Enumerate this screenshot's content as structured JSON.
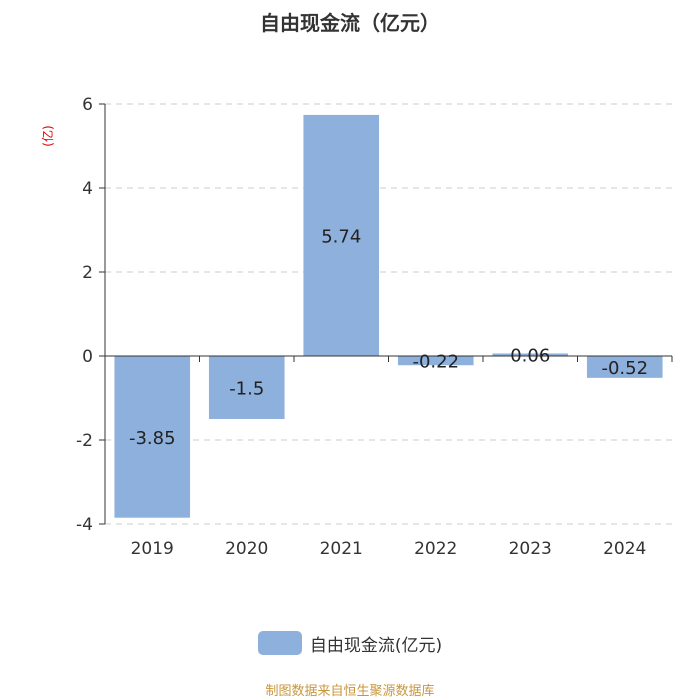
{
  "chart_data": {
    "type": "bar",
    "title": "自由现金流（亿元）",
    "ylabel": "(亿)",
    "categories": [
      "2019",
      "2020",
      "2021",
      "2022",
      "2023",
      "2024"
    ],
    "series": [
      {
        "name": "自由现金流(亿元)",
        "values": [
          -3.85,
          -1.5,
          5.74,
          -0.22,
          0.06,
          -0.52
        ]
      }
    ],
    "data_labels": [
      "-3.85",
      "-1.5",
      "5.74",
      "-0.22",
      "0.06",
      "-0.52"
    ],
    "ylim": [
      -4,
      6
    ],
    "yticks": [
      -4,
      -2,
      0,
      2,
      4,
      6
    ],
    "grid": true,
    "legend_position": "bottom",
    "bar_color": "#8eb0dc",
    "ylabel_color": "#e00000",
    "source_color": "#c8963c"
  },
  "legend": {
    "label": "自由现金流(亿元)"
  },
  "source": {
    "text": "制图数据来自恒生聚源数据库"
  }
}
